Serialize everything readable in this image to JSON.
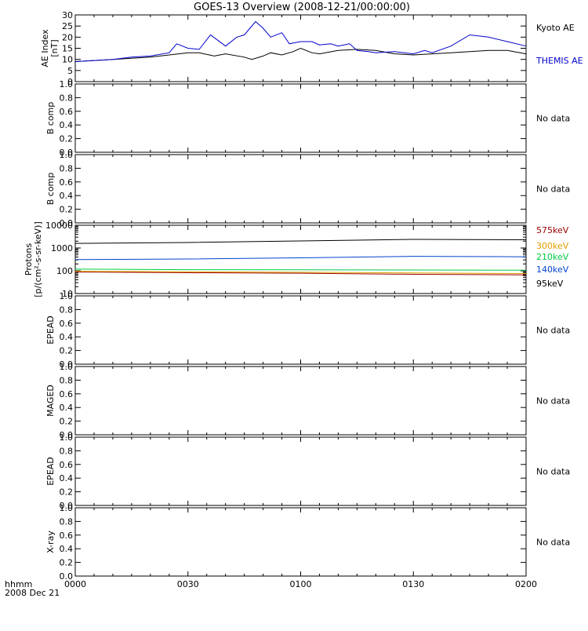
{
  "title": "GOES-13 Overview (2008-12-21/00:00:00)",
  "x_axis": {
    "tick_labels": [
      "0000",
      "0030",
      "0100",
      "0130",
      "0200"
    ],
    "corner_label_line1": "hhmm",
    "corner_label_line2": "2008 Dec 21"
  },
  "colors": {
    "black": "#000000",
    "blue": "#0000cc",
    "red": "#990000",
    "orange": "#e0a000",
    "green": "#00cc44",
    "proton_blue": "#0044cc"
  },
  "chart_data": [
    {
      "type": "line",
      "ylabel_line1": "AE Index",
      "ylabel_line2": "[nT]",
      "ylim": [
        0,
        30
      ],
      "yticks": [
        0,
        5,
        10,
        15,
        20,
        25,
        30
      ],
      "x_unit": "hhmm, 2008 Dec 21",
      "series": [
        {
          "name": "Kyoto AE",
          "color": "#000000",
          "x": [
            "00:00",
            "00:05",
            "00:10",
            "00:15",
            "00:20",
            "00:25",
            "00:30",
            "00:33",
            "00:37",
            "00:40",
            "00:45",
            "00:47",
            "00:50",
            "00:52",
            "00:55",
            "00:58",
            "01:00",
            "01:03",
            "01:05",
            "01:10",
            "01:15",
            "01:20",
            "01:25",
            "01:30",
            "01:35",
            "01:40",
            "01:45",
            "01:50",
            "01:55",
            "02:00"
          ],
          "values": [
            9,
            9.5,
            10,
            10.5,
            11,
            12,
            13,
            13,
            11.5,
            12.5,
            11,
            10,
            11.5,
            13,
            12,
            13.5,
            15,
            13,
            12.5,
            14,
            14.5,
            14,
            12.5,
            12,
            12.5,
            13,
            13.5,
            14,
            14,
            12.5
          ]
        },
        {
          "name": "THEMIS AE",
          "color": "#0000cc",
          "x": [
            "00:00",
            "00:05",
            "00:10",
            "00:15",
            "00:20",
            "00:25",
            "00:27",
            "00:30",
            "00:33",
            "00:36",
            "00:40",
            "00:43",
            "00:45",
            "00:48",
            "00:50",
            "00:52",
            "00:55",
            "00:57",
            "01:00",
            "01:03",
            "01:05",
            "01:08",
            "01:10",
            "01:13",
            "01:15",
            "01:18",
            "01:20",
            "01:25",
            "01:30",
            "01:33",
            "01:35",
            "01:40",
            "01:45",
            "01:50",
            "01:55",
            "02:00"
          ],
          "values": [
            9,
            9.5,
            10,
            11,
            11.5,
            13,
            17,
            15,
            14.5,
            21,
            16,
            20,
            21,
            27,
            24,
            20,
            22,
            17,
            18,
            18,
            16.5,
            17,
            16,
            17,
            14,
            13.5,
            13,
            13.5,
            12.5,
            14,
            13,
            16,
            21,
            20,
            18,
            16
          ]
        }
      ]
    },
    {
      "type": "line",
      "ylabel": "B comp",
      "ylim": [
        0.0,
        1.0
      ],
      "yticks": [
        "0.0",
        "0.2",
        "0.4",
        "0.6",
        "0.8",
        "1.0"
      ],
      "annotation": "No data"
    },
    {
      "type": "line",
      "ylabel": "B comp",
      "ylim": [
        0.0,
        1.0
      ],
      "yticks": [
        "0.0",
        "0.2",
        "0.4",
        "0.6",
        "0.8",
        "1.0"
      ],
      "annotation": "No data"
    },
    {
      "type": "line",
      "ylabel_line1": "Protons",
      "ylabel_line2": "[p/(cm²-s-sr-keV)]",
      "yscale": "log",
      "ylim": [
        10,
        10000
      ],
      "yticks": [
        "10",
        "100",
        "1000",
        "10000"
      ],
      "series": [
        {
          "name": "575keV",
          "color": "#990000",
          "x": [
            "00:00",
            "00:30",
            "01:00",
            "01:30",
            "02:00"
          ],
          "values": [
            88,
            82,
            78,
            70,
            66
          ]
        },
        {
          "name": "300keV",
          "color": "#e0a000",
          "x": [
            "00:00",
            "00:30",
            "01:00",
            "01:30",
            "02:00"
          ],
          "values": [
            95,
            90,
            86,
            80,
            76
          ]
        },
        {
          "name": "210keV",
          "color": "#00cc44",
          "x": [
            "00:00",
            "00:30",
            "01:00",
            "01:30",
            "02:00"
          ],
          "values": [
            118,
            112,
            110,
            108,
            106
          ]
        },
        {
          "name": "140keV",
          "color": "#0044cc",
          "x": [
            "00:00",
            "00:30",
            "01:00",
            "01:30",
            "02:00"
          ],
          "values": [
            310,
            330,
            370,
            430,
            410
          ]
        },
        {
          "name": "95keV",
          "color": "#000000",
          "x": [
            "00:00",
            "00:30",
            "01:00",
            "01:30",
            "02:00"
          ],
          "values": [
            1600,
            1750,
            2050,
            2400,
            2300
          ]
        }
      ]
    },
    {
      "type": "line",
      "ylabel": "EPEAD",
      "ylim": [
        0.0,
        1.0
      ],
      "yticks": [
        "0.0",
        "0.2",
        "0.4",
        "0.6",
        "0.8",
        "1.0"
      ],
      "annotation": "No data"
    },
    {
      "type": "line",
      "ylabel": "MAGED",
      "ylim": [
        0.0,
        1.0
      ],
      "yticks": [
        "0.0",
        "0.2",
        "0.4",
        "0.6",
        "0.8",
        "1.0"
      ],
      "annotation": "No data"
    },
    {
      "type": "line",
      "ylabel": "EPEAD",
      "ylim": [
        0.0,
        1.0
      ],
      "yticks": [
        "0.0",
        "0.2",
        "0.4",
        "0.6",
        "0.8",
        "1.0"
      ],
      "annotation": "No data"
    },
    {
      "type": "line",
      "ylabel": "X-ray",
      "ylim": [
        0.0,
        1.0
      ],
      "yticks": [
        "0.0",
        "0.2",
        "0.4",
        "0.6",
        "0.8",
        "1.0"
      ],
      "annotation": "No data"
    }
  ]
}
